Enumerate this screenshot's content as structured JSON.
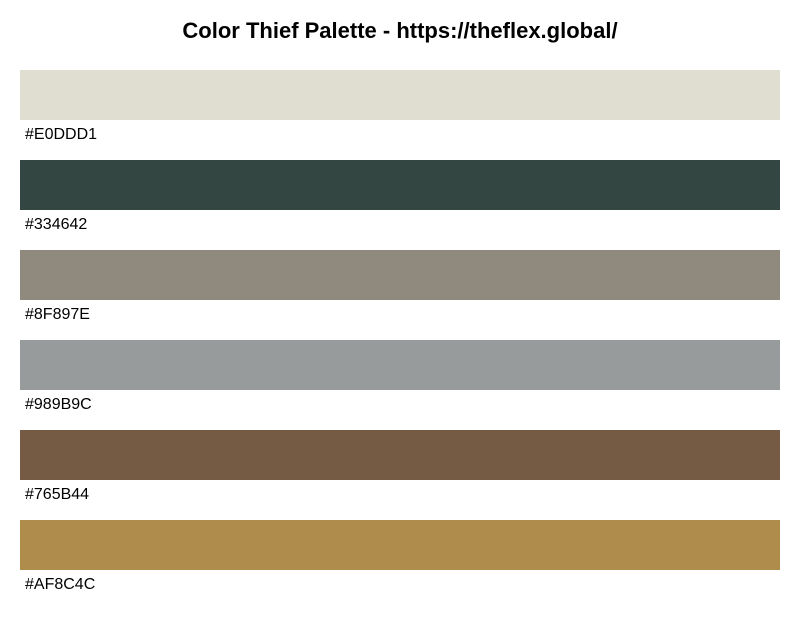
{
  "title": "Color Thief Palette - https://theflex.global/",
  "palette": [
    {
      "hex": "#E0DDD1",
      "color": "#E0DDD1"
    },
    {
      "hex": "#334642",
      "color": "#334642"
    },
    {
      "hex": "#8F897E",
      "color": "#8F897E"
    },
    {
      "hex": "#989B9C",
      "color": "#989B9C"
    },
    {
      "hex": "#765B44",
      "color": "#765B44"
    },
    {
      "hex": "#AF8C4C",
      "color": "#AF8C4C"
    }
  ]
}
